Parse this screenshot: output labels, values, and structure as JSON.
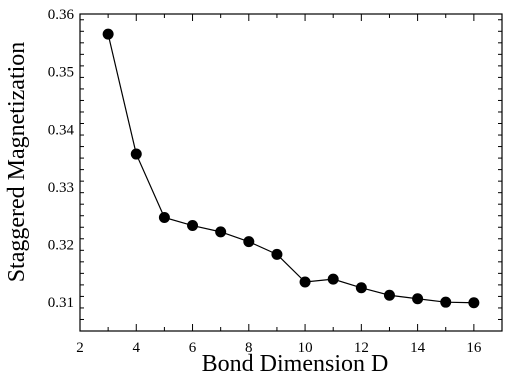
{
  "chart_data": {
    "type": "line",
    "title": "",
    "xlabel": "Bond Dimension D",
    "ylabel": "Staggered Magnetization",
    "xlim": [
      2,
      17
    ],
    "ylim": [
      0.305,
      0.36
    ],
    "x_ticks": [
      2,
      4,
      6,
      8,
      10,
      12,
      14,
      16
    ],
    "y_ticks": [
      0.31,
      0.32,
      0.33,
      0.34,
      0.35,
      0.36
    ],
    "x_tick_labels": [
      "2",
      "4",
      "6",
      "8",
      "10",
      "12",
      "14",
      "16"
    ],
    "y_tick_labels": [
      "0.31",
      "0.32",
      "0.33",
      "0.34",
      "0.35",
      "0.36"
    ],
    "grid": false,
    "legend": "none",
    "marker": "filled-circle",
    "series": [
      {
        "x": [
          3,
          4,
          5,
          6,
          7,
          8,
          9,
          10,
          11,
          12,
          13,
          14,
          15,
          16
        ],
        "values": [
          0.3565,
          0.3357,
          0.3247,
          0.3233,
          0.3222,
          0.3205,
          0.3183,
          0.3135,
          0.314,
          0.3125,
          0.3112,
          0.3106,
          0.31,
          0.3099
        ]
      }
    ],
    "color": "#000000"
  }
}
